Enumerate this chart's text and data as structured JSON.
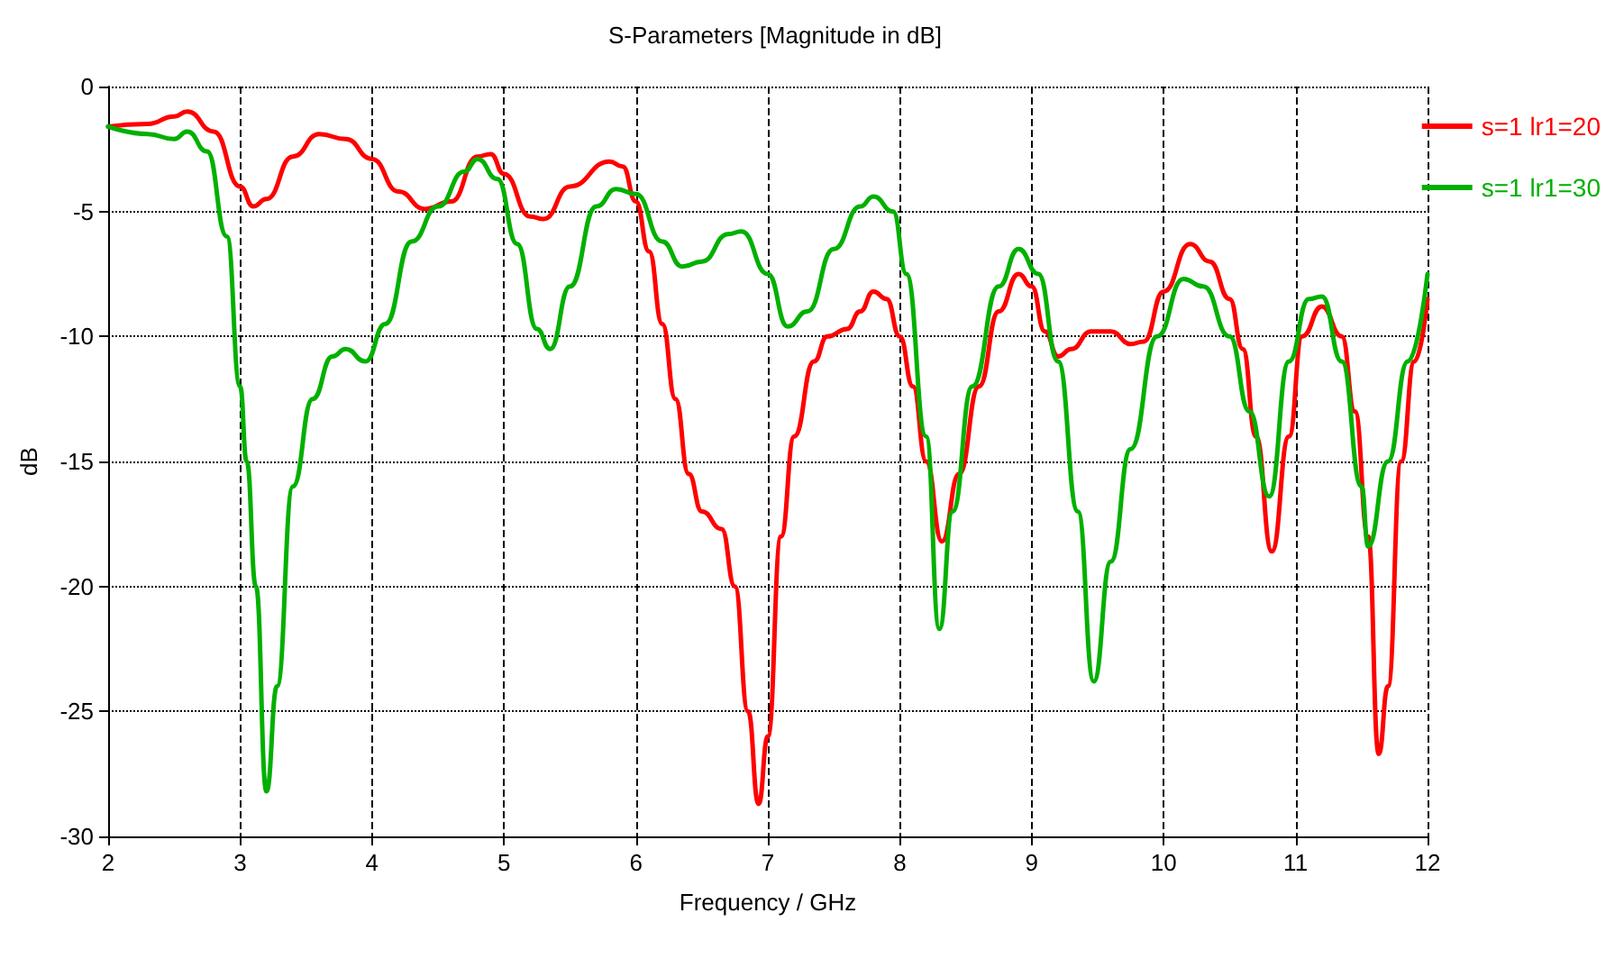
{
  "chart_data": {
    "type": "line",
    "title": "S-Parameters [Magnitude in dB]",
    "xlabel": "Frequency / GHz",
    "ylabel": "dB",
    "xlim": [
      2,
      12
    ],
    "xticks": [
      2,
      3,
      4,
      5,
      6,
      7,
      8,
      9,
      10,
      11,
      12
    ],
    "ylim": [
      -30,
      0
    ],
    "yticks": [
      -30,
      -25,
      -20,
      -15,
      -10,
      -5,
      0
    ],
    "grid": true,
    "legend": "right",
    "marker": "none",
    "line_style": "solid",
    "series": [
      {
        "name": "s=1 lr1=20",
        "color": "#ff0000",
        "x": [
          2.0,
          2.3,
          2.5,
          2.6,
          2.8,
          3.0,
          3.1,
          3.2,
          3.4,
          3.6,
          3.8,
          4.0,
          4.2,
          4.4,
          4.6,
          4.8,
          4.9,
          5.0,
          5.2,
          5.3,
          5.5,
          5.8,
          5.9,
          6.0,
          6.1,
          6.2,
          6.3,
          6.4,
          6.5,
          6.65,
          6.75,
          6.85,
          6.93,
          7.0,
          7.1,
          7.2,
          7.35,
          7.45,
          7.6,
          7.7,
          7.8,
          7.9,
          8.0,
          8.1,
          8.2,
          8.32,
          8.45,
          8.6,
          8.75,
          8.9,
          9.0,
          9.1,
          9.2,
          9.3,
          9.45,
          9.6,
          9.75,
          9.85,
          10.0,
          10.2,
          10.35,
          10.5,
          10.6,
          10.7,
          10.82,
          10.95,
          11.05,
          11.2,
          11.35,
          11.45,
          11.55,
          11.63,
          11.7,
          11.8,
          11.9,
          12.0
        ],
        "values": [
          -1.6,
          -1.5,
          -1.2,
          -1.0,
          -1.8,
          -4.0,
          -4.8,
          -4.5,
          -2.8,
          -1.9,
          -2.1,
          -2.9,
          -4.2,
          -4.9,
          -4.6,
          -2.8,
          -2.7,
          -3.5,
          -5.2,
          -5.3,
          -4.0,
          -3.0,
          -3.2,
          -4.6,
          -6.6,
          -9.5,
          -12.5,
          -15.5,
          -17,
          -17.7,
          -20,
          -25,
          -28.7,
          -26,
          -18,
          -14,
          -11,
          -10,
          -9.7,
          -9,
          -8.2,
          -8.5,
          -10,
          -12,
          -15,
          -18.2,
          -15.5,
          -12,
          -9,
          -7.5,
          -8,
          -9.8,
          -10.8,
          -10.5,
          -9.8,
          -9.8,
          -10.3,
          -10.2,
          -8.2,
          -6.3,
          -7,
          -8.5,
          -10.5,
          -14,
          -18.6,
          -14,
          -10,
          -8.8,
          -10,
          -13,
          -18,
          -26.7,
          -24,
          -15,
          -11,
          -8.5
        ]
      },
      {
        "name": "s=1 lr1=30",
        "color": "#00b000",
        "x": [
          2.0,
          2.3,
          2.5,
          2.6,
          2.75,
          2.9,
          3.0,
          3.05,
          3.12,
          3.2,
          3.28,
          3.4,
          3.55,
          3.7,
          3.8,
          3.95,
          4.1,
          4.3,
          4.5,
          4.7,
          4.8,
          4.95,
          5.1,
          5.25,
          5.35,
          5.5,
          5.7,
          5.85,
          6.0,
          6.2,
          6.35,
          6.5,
          6.7,
          6.8,
          7.0,
          7.15,
          7.3,
          7.5,
          7.7,
          7.8,
          7.95,
          8.05,
          8.2,
          8.3,
          8.4,
          8.55,
          8.75,
          8.9,
          9.05,
          9.2,
          9.35,
          9.47,
          9.6,
          9.75,
          9.95,
          10.15,
          10.3,
          10.5,
          10.65,
          10.8,
          10.95,
          11.1,
          11.2,
          11.35,
          11.5,
          11.55,
          11.7,
          11.85,
          12.0
        ],
        "values": [
          -1.6,
          -1.9,
          -2.1,
          -1.8,
          -2.6,
          -6,
          -12,
          -15,
          -20,
          -28.2,
          -24,
          -16,
          -12.5,
          -10.8,
          -10.5,
          -11,
          -9.5,
          -6.2,
          -4.8,
          -3.4,
          -2.9,
          -3.7,
          -6.3,
          -9.7,
          -10.5,
          -8,
          -4.8,
          -4.1,
          -4.3,
          -6.2,
          -7.2,
          -7,
          -5.9,
          -5.8,
          -7.5,
          -9.6,
          -9,
          -6.5,
          -4.8,
          -4.4,
          -5,
          -7.5,
          -14,
          -21.7,
          -17,
          -12,
          -8,
          -6.5,
          -7.5,
          -11,
          -17,
          -23.8,
          -19,
          -14.5,
          -10,
          -7.7,
          -8,
          -10,
          -13,
          -16.4,
          -11,
          -8.5,
          -8.4,
          -11,
          -16,
          -18.4,
          -15,
          -11,
          -7.5
        ]
      }
    ]
  }
}
